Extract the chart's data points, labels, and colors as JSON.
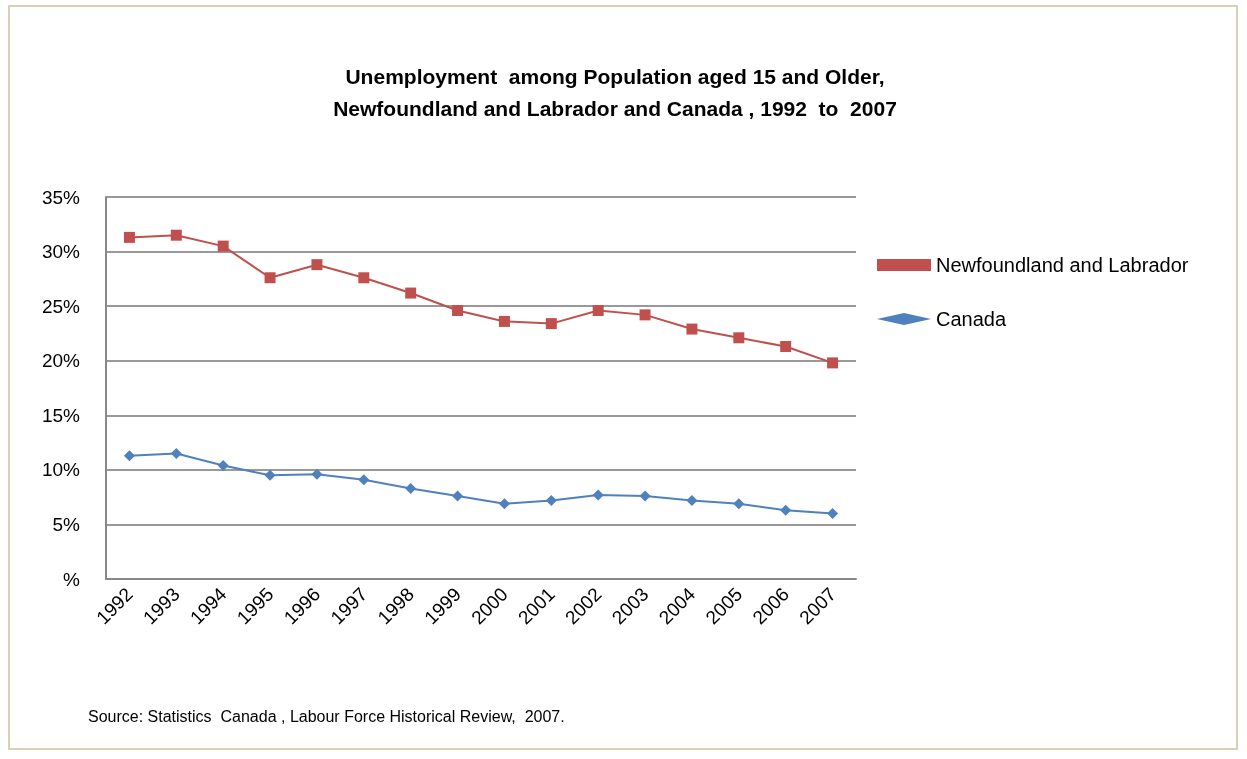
{
  "chart_data": {
    "type": "line",
    "title": "Unemployment  among Population aged 15 and Older,\nNewfoundland and Labrador and Canada , 1992  to  2007",
    "categories": [
      "1992",
      "1993",
      "1994",
      "1995",
      "1996",
      "1997",
      "1998",
      "1999",
      "2000",
      "2001",
      "2002",
      "2003",
      "2004",
      "2005",
      "2006",
      "2007"
    ],
    "series": [
      {
        "name": "Newfoundland and Labrador",
        "color": "#c0504d",
        "marker": "square",
        "values": [
          31.3,
          31.5,
          30.5,
          27.6,
          28.8,
          27.6,
          26.2,
          24.6,
          23.6,
          23.4,
          24.6,
          24.2,
          22.9,
          22.1,
          21.3,
          19.8
        ]
      },
      {
        "name": "Canada",
        "color": "#4f81bd",
        "marker": "diamond",
        "values": [
          11.3,
          11.5,
          10.4,
          9.5,
          9.6,
          9.1,
          8.3,
          7.6,
          6.9,
          7.2,
          7.7,
          7.6,
          7.2,
          6.9,
          6.3,
          6.0
        ]
      }
    ],
    "ylim": [
      0,
      35
    ],
    "yticks": [
      {
        "value": 0,
        "label": "%"
      },
      {
        "value": 5,
        "label": "5%"
      },
      {
        "value": 10,
        "label": "10%"
      },
      {
        "value": 15,
        "label": "15%"
      },
      {
        "value": 20,
        "label": "20%"
      },
      {
        "value": 25,
        "label": "25%"
      },
      {
        "value": 30,
        "label": "30%"
      },
      {
        "value": 35,
        "label": "35%"
      }
    ],
    "grid": "y",
    "legend": "right",
    "annotations": [
      "Source: Statistics  Canada , Labour Force Historical Review,  2007."
    ]
  }
}
